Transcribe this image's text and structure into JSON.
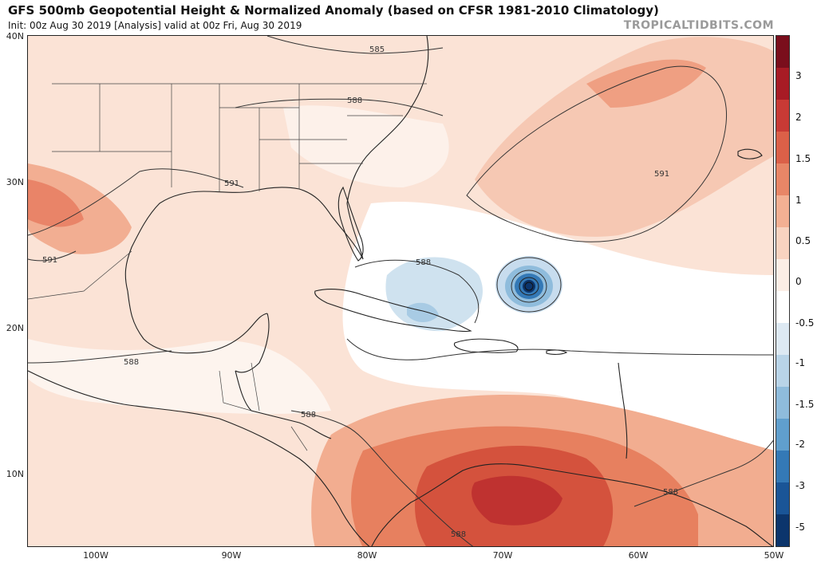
{
  "header": {
    "title": "GFS 500mb Geopotential Height & Normalized Anomaly (based on CFSR 1981-2010 Climatology)",
    "subtitle": "Init: 00z Aug 30 2019   [Analysis]   valid at 00z Fri, Aug 30 2019",
    "brand": "TROPICALTIDBITS.COM"
  },
  "axes": {
    "lat_labels": [
      "40N",
      "30N",
      "20N",
      "10N"
    ],
    "lon_labels": [
      "100W",
      "90W",
      "80W",
      "70W",
      "60W",
      "50W"
    ]
  },
  "contours": {
    "labels": [
      "585",
      "588",
      "591",
      "591",
      "591",
      "588",
      "588",
      "588",
      "588",
      "588"
    ]
  },
  "colorbar": {
    "labels": [
      "3",
      "2",
      "1.5",
      "1",
      "0.5",
      "0",
      "-0.5",
      "-1",
      "-1.5",
      "-2",
      "-3",
      "-5"
    ],
    "colors": [
      "#7a0e1c",
      "#a81b25",
      "#c83a35",
      "#db6048",
      "#e88667",
      "#f3b093",
      "#f8d3c0",
      "#fceee6",
      "#ffffff",
      "#dde9f3",
      "#b9d4e8",
      "#8fbcdc",
      "#609fcd",
      "#3479b6",
      "#1a5597",
      "#0c356c"
    ]
  }
}
